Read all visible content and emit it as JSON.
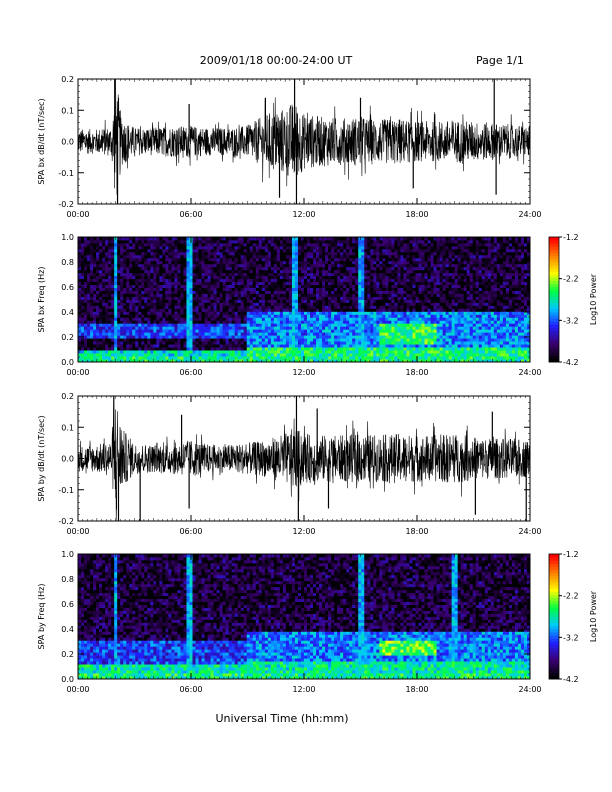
{
  "header": {
    "title": "2009/01/18  00:00-24:00 UT",
    "page": "Page 1/1"
  },
  "footer": {
    "xlabel": "Universal Time (hh:mm)"
  },
  "colors": {
    "waveform": "#000000",
    "colormap": [
      "#000000",
      "#3a0070",
      "#2020ff",
      "#00c8ff",
      "#00ff40",
      "#ffff00",
      "#ff8000",
      "#ff0000"
    ]
  },
  "chart_data": [
    {
      "type": "line",
      "id": "bx-wave",
      "ylabel": "SPA bx dB/dt (nT/sec)",
      "xlim": [
        0,
        24
      ],
      "ylim": [
        -0.2,
        0.2
      ],
      "x_ticks": [
        "00:00",
        "06:00",
        "12:00",
        "18:00",
        "24:00"
      ],
      "y_ticks": [
        "-0.2",
        "-0.1",
        "0.0",
        "0.1",
        "0.2"
      ],
      "envelope": {
        "x": [
          0,
          1,
          1.8,
          2.0,
          2.3,
          3,
          4,
          5,
          6,
          7,
          8,
          9,
          10,
          11,
          11.5,
          12,
          13,
          14,
          15,
          16,
          17,
          18,
          19,
          20,
          21,
          22,
          23,
          24
        ],
        "amplitude": [
          0.04,
          0.04,
          0.05,
          0.22,
          0.08,
          0.045,
          0.045,
          0.05,
          0.05,
          0.045,
          0.045,
          0.05,
          0.09,
          0.11,
          0.13,
          0.09,
          0.08,
          0.075,
          0.08,
          0.07,
          0.075,
          0.065,
          0.065,
          0.07,
          0.065,
          0.06,
          0.055,
          0.05
        ]
      },
      "spikes": [
        {
          "x": 1.95,
          "y": 0.22
        },
        {
          "x": 2.1,
          "y": -0.22
        },
        {
          "x": 5.9,
          "y": 0.12
        },
        {
          "x": 9.95,
          "y": 0.14
        },
        {
          "x": 10.7,
          "y": -0.18
        },
        {
          "x": 11.5,
          "y": 0.2
        },
        {
          "x": 11.6,
          "y": -0.2
        },
        {
          "x": 15.0,
          "y": 0.14
        },
        {
          "x": 17.8,
          "y": -0.15
        },
        {
          "x": 22.1,
          "y": 0.2
        },
        {
          "x": 22.2,
          "y": -0.17
        }
      ]
    },
    {
      "type": "heatmap",
      "id": "bx-spec",
      "ylabel": "SPA bx Freq (Hz)",
      "xlim": [
        0,
        24
      ],
      "ylim": [
        0.0,
        1.0
      ],
      "x_ticks": [
        "00:00",
        "06:00",
        "12:00",
        "18:00",
        "24:00"
      ],
      "y_ticks": [
        "0.0",
        "0.2",
        "0.4",
        "0.6",
        "0.8",
        "1.0"
      ],
      "colorbar": {
        "label": "Log10 Power",
        "range": [
          -4.2,
          -1.2
        ],
        "ticks": [
          "-1.2",
          "-2.2",
          "-3.2",
          "-4.2"
        ]
      },
      "bands": [
        {
          "t0": 0,
          "t1": 9,
          "f0": 0.0,
          "f1": 0.1,
          "level": -2.8
        },
        {
          "t0": 0,
          "t1": 9,
          "f0": 0.2,
          "f1": 0.32,
          "level": -3.3
        },
        {
          "t0": 9,
          "t1": 24,
          "f0": 0.0,
          "f1": 0.12,
          "level": -2.6
        },
        {
          "t0": 9,
          "t1": 24,
          "f0": 0.12,
          "f1": 0.4,
          "level": -3.1
        },
        {
          "t0": 16,
          "t1": 19,
          "f0": 0.15,
          "f1": 0.3,
          "level": -2.5
        }
      ],
      "vertical_streaks": [
        2.0,
        5.9,
        6.0,
        11.5,
        15.0
      ]
    },
    {
      "type": "line",
      "id": "by-wave",
      "ylabel": "SPA by dB/dt (nT/sec)",
      "xlim": [
        0,
        24
      ],
      "ylim": [
        -0.2,
        0.2
      ],
      "x_ticks": [
        "00:00",
        "06:00",
        "12:00",
        "18:00",
        "24:00"
      ],
      "y_ticks": [
        "-0.2",
        "-0.1",
        "0.0",
        "0.1",
        "0.2"
      ],
      "envelope": {
        "x": [
          0,
          1,
          1.8,
          2.0,
          2.3,
          3,
          4,
          5,
          6,
          7,
          8,
          9,
          10,
          11,
          11.5,
          12,
          13,
          14,
          15,
          16,
          17,
          18,
          19,
          20,
          21,
          22,
          23,
          24
        ],
        "amplitude": [
          0.04,
          0.045,
          0.06,
          0.22,
          0.1,
          0.05,
          0.045,
          0.05,
          0.06,
          0.045,
          0.045,
          0.05,
          0.06,
          0.08,
          0.1,
          0.08,
          0.075,
          0.075,
          0.08,
          0.075,
          0.08,
          0.075,
          0.075,
          0.08,
          0.07,
          0.065,
          0.065,
          0.06
        ]
      },
      "spikes": [
        {
          "x": 1.9,
          "y": 0.22
        },
        {
          "x": 2.15,
          "y": -0.22
        },
        {
          "x": 3.3,
          "y": -0.2
        },
        {
          "x": 5.5,
          "y": 0.14
        },
        {
          "x": 5.9,
          "y": -0.16
        },
        {
          "x": 11.6,
          "y": 0.2
        },
        {
          "x": 11.7,
          "y": -0.2
        },
        {
          "x": 12.7,
          "y": 0.16
        },
        {
          "x": 13.3,
          "y": -0.16
        },
        {
          "x": 21.1,
          "y": -0.18
        },
        {
          "x": 22.0,
          "y": 0.15
        },
        {
          "x": 23.8,
          "y": -0.2
        }
      ]
    },
    {
      "type": "heatmap",
      "id": "by-spec",
      "ylabel": "SPA by Freq (Hz)",
      "xlim": [
        0,
        24
      ],
      "ylim": [
        0.0,
        1.0
      ],
      "x_ticks": [
        "00:00",
        "06:00",
        "12:00",
        "18:00",
        "24:00"
      ],
      "y_ticks": [
        "0.0",
        "0.2",
        "0.4",
        "0.6",
        "0.8",
        "1.0"
      ],
      "colorbar": {
        "label": "Log10 Power",
        "range": [
          -4.2,
          -1.2
        ],
        "ticks": [
          "-1.2",
          "-2.2",
          "-3.2",
          "-4.2"
        ]
      },
      "bands": [
        {
          "t0": 0,
          "t1": 9,
          "f0": 0.0,
          "f1": 0.12,
          "level": -2.7
        },
        {
          "t0": 0,
          "t1": 9,
          "f0": 0.12,
          "f1": 0.3,
          "level": -3.3
        },
        {
          "t0": 9,
          "t1": 24,
          "f0": 0.0,
          "f1": 0.15,
          "level": -2.7
        },
        {
          "t0": 9,
          "t1": 24,
          "f0": 0.15,
          "f1": 0.38,
          "level": -3.1
        },
        {
          "t0": 16,
          "t1": 19,
          "f0": 0.18,
          "f1": 0.3,
          "level": -2.4
        }
      ],
      "vertical_streaks": [
        2.0,
        5.9,
        6.0,
        15.0,
        20.0
      ]
    }
  ]
}
